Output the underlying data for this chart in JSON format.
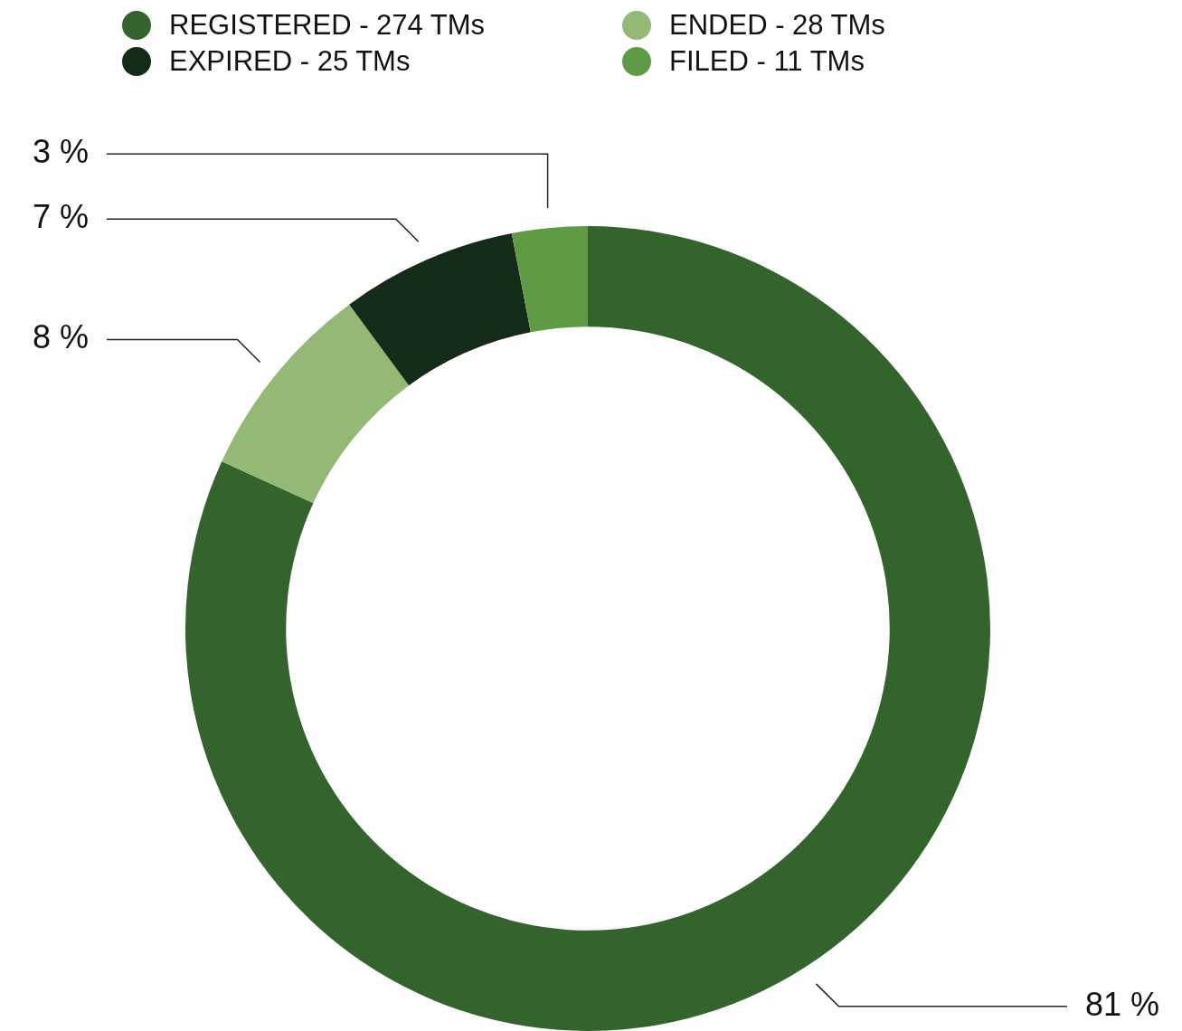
{
  "chart_data": {
    "type": "donut",
    "categories": [
      "REGISTERED - 274 TMs",
      "ENDED - 28 TMs",
      "EXPIRED - 25 TMs",
      "FILED - 11 TMs"
    ],
    "values": [
      81,
      8,
      7,
      3
    ],
    "colors": [
      "#33642c",
      "#94b975",
      "#132b17",
      "#5f9b45"
    ],
    "value_labels": [
      "81 %",
      "8 %",
      "7 %",
      "3 %"
    ],
    "legend": "top"
  }
}
